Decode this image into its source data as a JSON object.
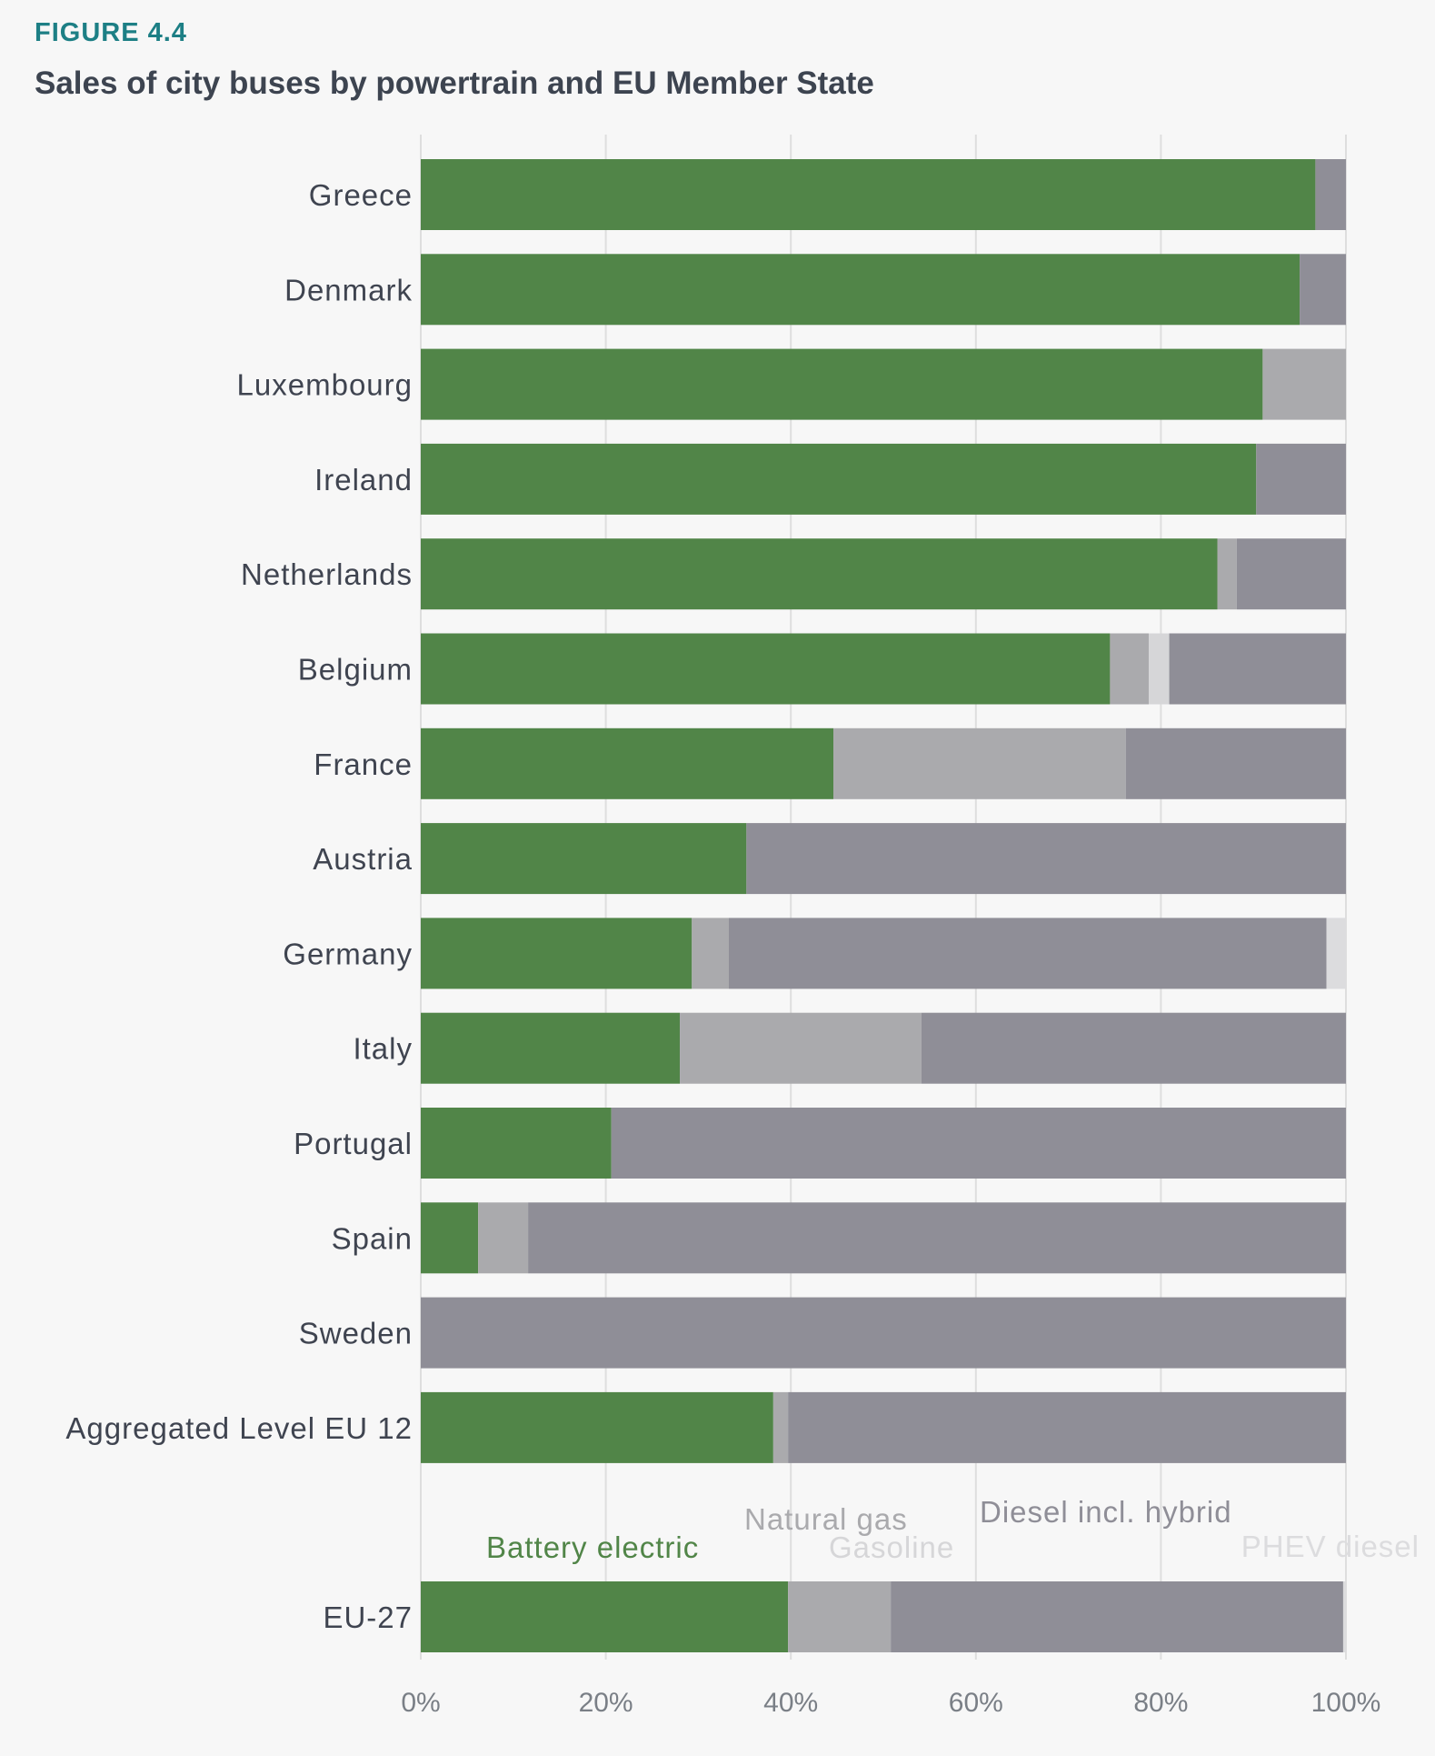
{
  "figure": {
    "label": "FIGURE 4.4",
    "title": "Sales of city buses by powertrain and EU Member State"
  },
  "chart_data": {
    "type": "bar",
    "orientation": "horizontal",
    "stacked": true,
    "title": "Sales of city buses by powertrain and EU Member State",
    "xlabel": "",
    "ylabel": "",
    "xlim": [
      0,
      100
    ],
    "x_ticks": [
      "0%",
      "20%",
      "40%",
      "60%",
      "80%",
      "100%"
    ],
    "grid": true,
    "categories": [
      "Greece",
      "Denmark",
      "Luxembourg",
      "Ireland",
      "Netherlands",
      "Belgium",
      "France",
      "Austria",
      "Germany",
      "Italy",
      "Portugal",
      "Spain",
      "Sweden",
      "Aggregated Level EU 12",
      "EU-27"
    ],
    "series": [
      {
        "name": "Battery electric",
        "color": "#518548",
        "values": [
          96.7,
          95,
          91,
          90.3,
          86.1,
          74.5,
          44.6,
          35.2,
          29.3,
          28,
          20.6,
          6.2,
          0,
          38.1,
          39.7
        ]
      },
      {
        "name": "Natural gas",
        "color": "#aaaaad",
        "values": [
          0,
          0,
          9,
          0,
          2.1,
          4.2,
          31.6,
          0,
          4,
          26.1,
          0,
          5.4,
          0,
          1.6,
          11.1
        ]
      },
      {
        "name": "Gasoline",
        "color": "#d6d6d8",
        "values": [
          0,
          0,
          0,
          0,
          0,
          2.2,
          0,
          0,
          0,
          0,
          0,
          0,
          0,
          0,
          0
        ]
      },
      {
        "name": "Diesel incl. hybrid",
        "color": "#8f8e97",
        "values": [
          3.3,
          5,
          0,
          9.7,
          11.8,
          19.1,
          23.8,
          64.8,
          64.6,
          45.9,
          79.4,
          88.4,
          100,
          60.3,
          48.9
        ]
      },
      {
        "name": "PHEV diesel",
        "color": "#dcdcde",
        "values": [
          0,
          0,
          0,
          0,
          0,
          0,
          0,
          0,
          2.1,
          0,
          0,
          0,
          0,
          0,
          0.3
        ]
      }
    ]
  }
}
